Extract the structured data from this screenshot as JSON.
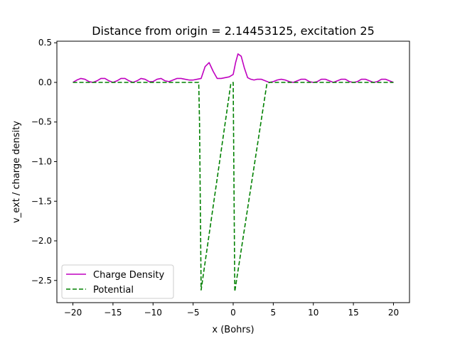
{
  "chart_data": {
    "type": "line",
    "title": "Distance from origin = 2.14453125, excitation 25",
    "xlabel": "x (Bohrs)",
    "ylabel": "v_ext / charge density",
    "xlim": [
      -22.0,
      22.0
    ],
    "ylim": [
      -2.78,
      0.52
    ],
    "x_ticks": [
      -20,
      -15,
      -10,
      -5,
      0,
      5,
      10,
      15,
      20
    ],
    "x_tick_labels": [
      "−20",
      "−15",
      "−10",
      "−5",
      "0",
      "5",
      "10",
      "15",
      "20"
    ],
    "y_ticks": [
      0.5,
      0.0,
      -0.5,
      -1.0,
      -1.5,
      -2.0,
      -2.5
    ],
    "y_tick_labels": [
      "0.5",
      "0.0",
      "−0.5",
      "−1.0",
      "−1.5",
      "−2.0",
      "−2.5"
    ],
    "grid": false,
    "legend": {
      "placement": "lower-left"
    },
    "series": [
      {
        "name": "Charge Density",
        "color": "#bf00bf",
        "style": "solid",
        "x": [
          -20.0,
          -19.5,
          -19.0,
          -18.5,
          -18.0,
          -17.5,
          -17.0,
          -16.5,
          -16.0,
          -15.5,
          -15.0,
          -14.5,
          -14.0,
          -13.5,
          -13.0,
          -12.5,
          -12.0,
          -11.5,
          -11.0,
          -10.5,
          -10.0,
          -9.5,
          -9.0,
          -8.5,
          -8.0,
          -7.5,
          -7.0,
          -6.5,
          -6.0,
          -5.5,
          -5.0,
          -4.5,
          -4.0,
          -3.5,
          -3.0,
          -2.5,
          -2.0,
          -1.5,
          -1.0,
          -0.5,
          0.0,
          0.3,
          0.6,
          1.0,
          1.4,
          1.8,
          2.2,
          2.6,
          3.0,
          3.5,
          4.0,
          4.5,
          5.0,
          5.5,
          6.0,
          6.5,
          7.0,
          7.5,
          8.0,
          8.5,
          9.0,
          9.5,
          10.0,
          10.5,
          11.0,
          11.5,
          12.0,
          12.5,
          13.0,
          13.5,
          14.0,
          14.5,
          15.0,
          15.5,
          16.0,
          16.5,
          17.0,
          17.5,
          18.0,
          18.5,
          19.0,
          19.5,
          20.0
        ],
        "y": [
          0.0,
          0.03,
          0.05,
          0.04,
          0.01,
          0.0,
          0.02,
          0.05,
          0.05,
          0.02,
          0.0,
          0.02,
          0.05,
          0.05,
          0.02,
          0.0,
          0.02,
          0.05,
          0.04,
          0.01,
          0.01,
          0.04,
          0.05,
          0.02,
          0.01,
          0.03,
          0.05,
          0.05,
          0.04,
          0.03,
          0.03,
          0.04,
          0.05,
          0.2,
          0.25,
          0.14,
          0.05,
          0.05,
          0.06,
          0.07,
          0.1,
          0.25,
          0.36,
          0.33,
          0.18,
          0.06,
          0.04,
          0.03,
          0.04,
          0.04,
          0.02,
          0.0,
          0.01,
          0.03,
          0.04,
          0.03,
          0.01,
          0.0,
          0.02,
          0.04,
          0.04,
          0.01,
          0.0,
          0.01,
          0.04,
          0.04,
          0.02,
          0.0,
          0.02,
          0.04,
          0.04,
          0.01,
          0.0,
          0.01,
          0.04,
          0.04,
          0.02,
          0.0,
          0.01,
          0.04,
          0.04,
          0.02,
          0.0
        ]
      },
      {
        "name": "Potential",
        "color": "#008000",
        "style": "dashed",
        "x": [
          -20.0,
          -4.3,
          -4.2,
          -4.0,
          -0.3,
          0.0,
          0.2,
          4.2,
          4.5,
          20.0
        ],
        "y": [
          0.0,
          0.0,
          -0.5,
          -2.62,
          -0.02,
          0.0,
          -2.64,
          -0.02,
          0.0,
          0.0
        ]
      }
    ]
  }
}
